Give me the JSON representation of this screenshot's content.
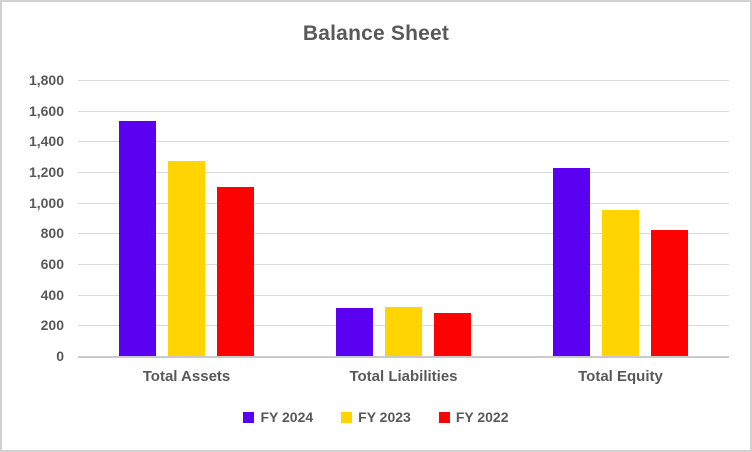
{
  "title": "Balance Sheet",
  "chart_data": {
    "type": "bar",
    "title": "Balance Sheet",
    "categories": [
      "Total Assets",
      "Total Liabilities",
      "Total Equity"
    ],
    "series": [
      {
        "name": "FY 2024",
        "color": "#5a01f1",
        "values": [
          1535,
          310,
          1225
        ]
      },
      {
        "name": "FY 2023",
        "color": "#ffd400",
        "values": [
          1270,
          320,
          950
        ]
      },
      {
        "name": "FY 2022",
        "color": "#fb0303",
        "values": [
          1100,
          280,
          820
        ]
      }
    ],
    "xlabel": "",
    "ylabel": "",
    "ylim": [
      0,
      1800
    ],
    "y_tick_step": 200,
    "y_tick_labels": [
      "0",
      "200",
      "400",
      "600",
      "800",
      "1,000",
      "1,200",
      "1,400",
      "1,600",
      "1,800"
    ],
    "grid": true,
    "legend_position": "bottom",
    "text_color": "#595959",
    "gridline_color": "#d9d9d9"
  }
}
